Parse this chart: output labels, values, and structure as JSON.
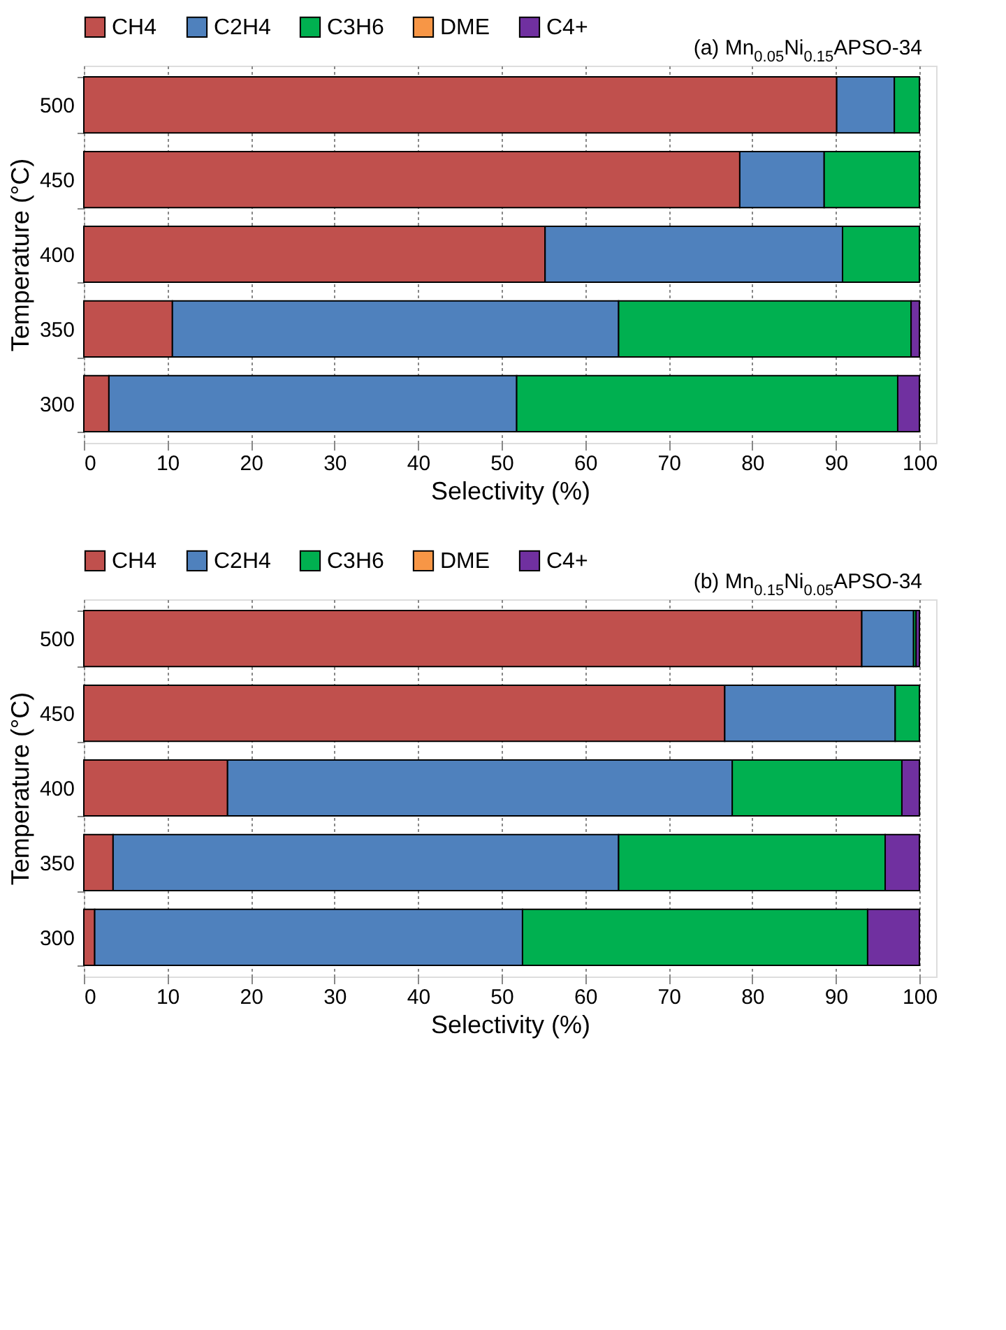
{
  "chart_data": [
    {
      "type": "bar",
      "orientation": "horizontal",
      "stacked": true,
      "xlabel": "Selectivity (%)",
      "ylabel": "Temperature (°C)",
      "annotations": [
        "(a) Mn$_{0.05}$Ni$_{0.15}$APSO-34"
      ],
      "categories": [
        "500",
        "450",
        "400",
        "350",
        "300"
      ],
      "series": [
        {
          "name": "CH4",
          "color": "#c0504d",
          "values": [
            90.1,
            78.5,
            55.2,
            10.6,
            3.0
          ]
        },
        {
          "name": "C2H4",
          "color": "#4f81bd",
          "values": [
            6.9,
            10.1,
            35.6,
            53.4,
            48.8
          ]
        },
        {
          "name": "C3H6",
          "color": "#00b050",
          "values": [
            3.0,
            11.4,
            9.2,
            35.0,
            45.6
          ]
        },
        {
          "name": "DME",
          "color": "#f79646",
          "values": [
            null,
            null,
            null,
            null,
            null
          ]
        },
        {
          "name": "C4+",
          "color": "#7030a0",
          "values": [
            null,
            null,
            null,
            1.0,
            2.6
          ]
        }
      ],
      "xlim": [
        0,
        102
      ],
      "xticks": [
        0,
        10,
        20,
        30,
        40,
        50,
        60,
        70,
        80,
        90,
        100
      ],
      "grid": "x",
      "legend": "top left"
    },
    {
      "type": "bar",
      "orientation": "horizontal",
      "stacked": true,
      "xlabel": "Selectivity (%)",
      "ylabel": "Temperature (°C)",
      "annotations": [
        "(b) Mn$_{0.15}$Ni$_{0.05}$APSO-34"
      ],
      "categories": [
        "500",
        "450",
        "400",
        "350",
        "300"
      ],
      "series": [
        {
          "name": "CH4",
          "color": "#c0504d",
          "values": [
            93.1,
            76.7,
            17.2,
            3.5,
            1.3
          ]
        },
        {
          "name": "C2H4",
          "color": "#4f81bd",
          "values": [
            6.2,
            20.4,
            60.4,
            60.5,
            51.2
          ]
        },
        {
          "name": "C3H6",
          "color": "#00b050",
          "values": [
            0.3,
            2.9,
            20.3,
            31.9,
            41.3
          ]
        },
        {
          "name": "DME",
          "color": "#f79646",
          "values": [
            null,
            null,
            null,
            null,
            null
          ]
        },
        {
          "name": "C4+",
          "color": "#7030a0",
          "values": [
            0.4,
            null,
            2.1,
            4.1,
            6.2
          ]
        }
      ],
      "xlim": [
        0,
        102
      ],
      "xticks": [
        0,
        10,
        20,
        30,
        40,
        50,
        60,
        70,
        80,
        90,
        100
      ],
      "grid": "x",
      "legend": "top left"
    }
  ]
}
